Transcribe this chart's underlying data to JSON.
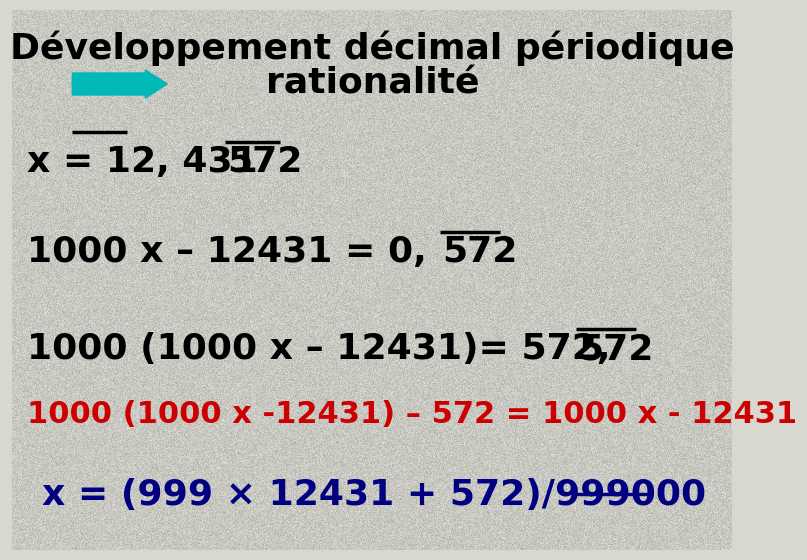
{
  "bg_color": "#d8d8d0",
  "title_line1": "Développement décimal périodique",
  "title_line2": "rationalité",
  "title_color": "#000000",
  "title_fontsize": 26,
  "arrow_color": "#00b8b8",
  "line1_pre": "x = 12, 431",
  "line1_over": "572",
  "line1_color": "#000000",
  "line1_fontsize": 26,
  "line2_pre": "1000 x – 12431 = 0, ",
  "line2_over": "572",
  "line2_color": "#000000",
  "line2_fontsize": 26,
  "line3_pre": "1000 (1000 x – 12431)= 572, ",
  "line3_over": "572",
  "line3_color": "#000000",
  "line3_fontsize": 26,
  "line4_text": "1000 (1000 x -12431) – 572 = 1000 x - 12431",
  "line4_color": "#cc0000",
  "line4_fontsize": 22,
  "line5_text": "x = (999 × 12431 + 572)/999000",
  "line5_color": "#000080",
  "line5_fontsize": 26,
  "underline_color": "#000080",
  "noise_alpha": 0.18
}
